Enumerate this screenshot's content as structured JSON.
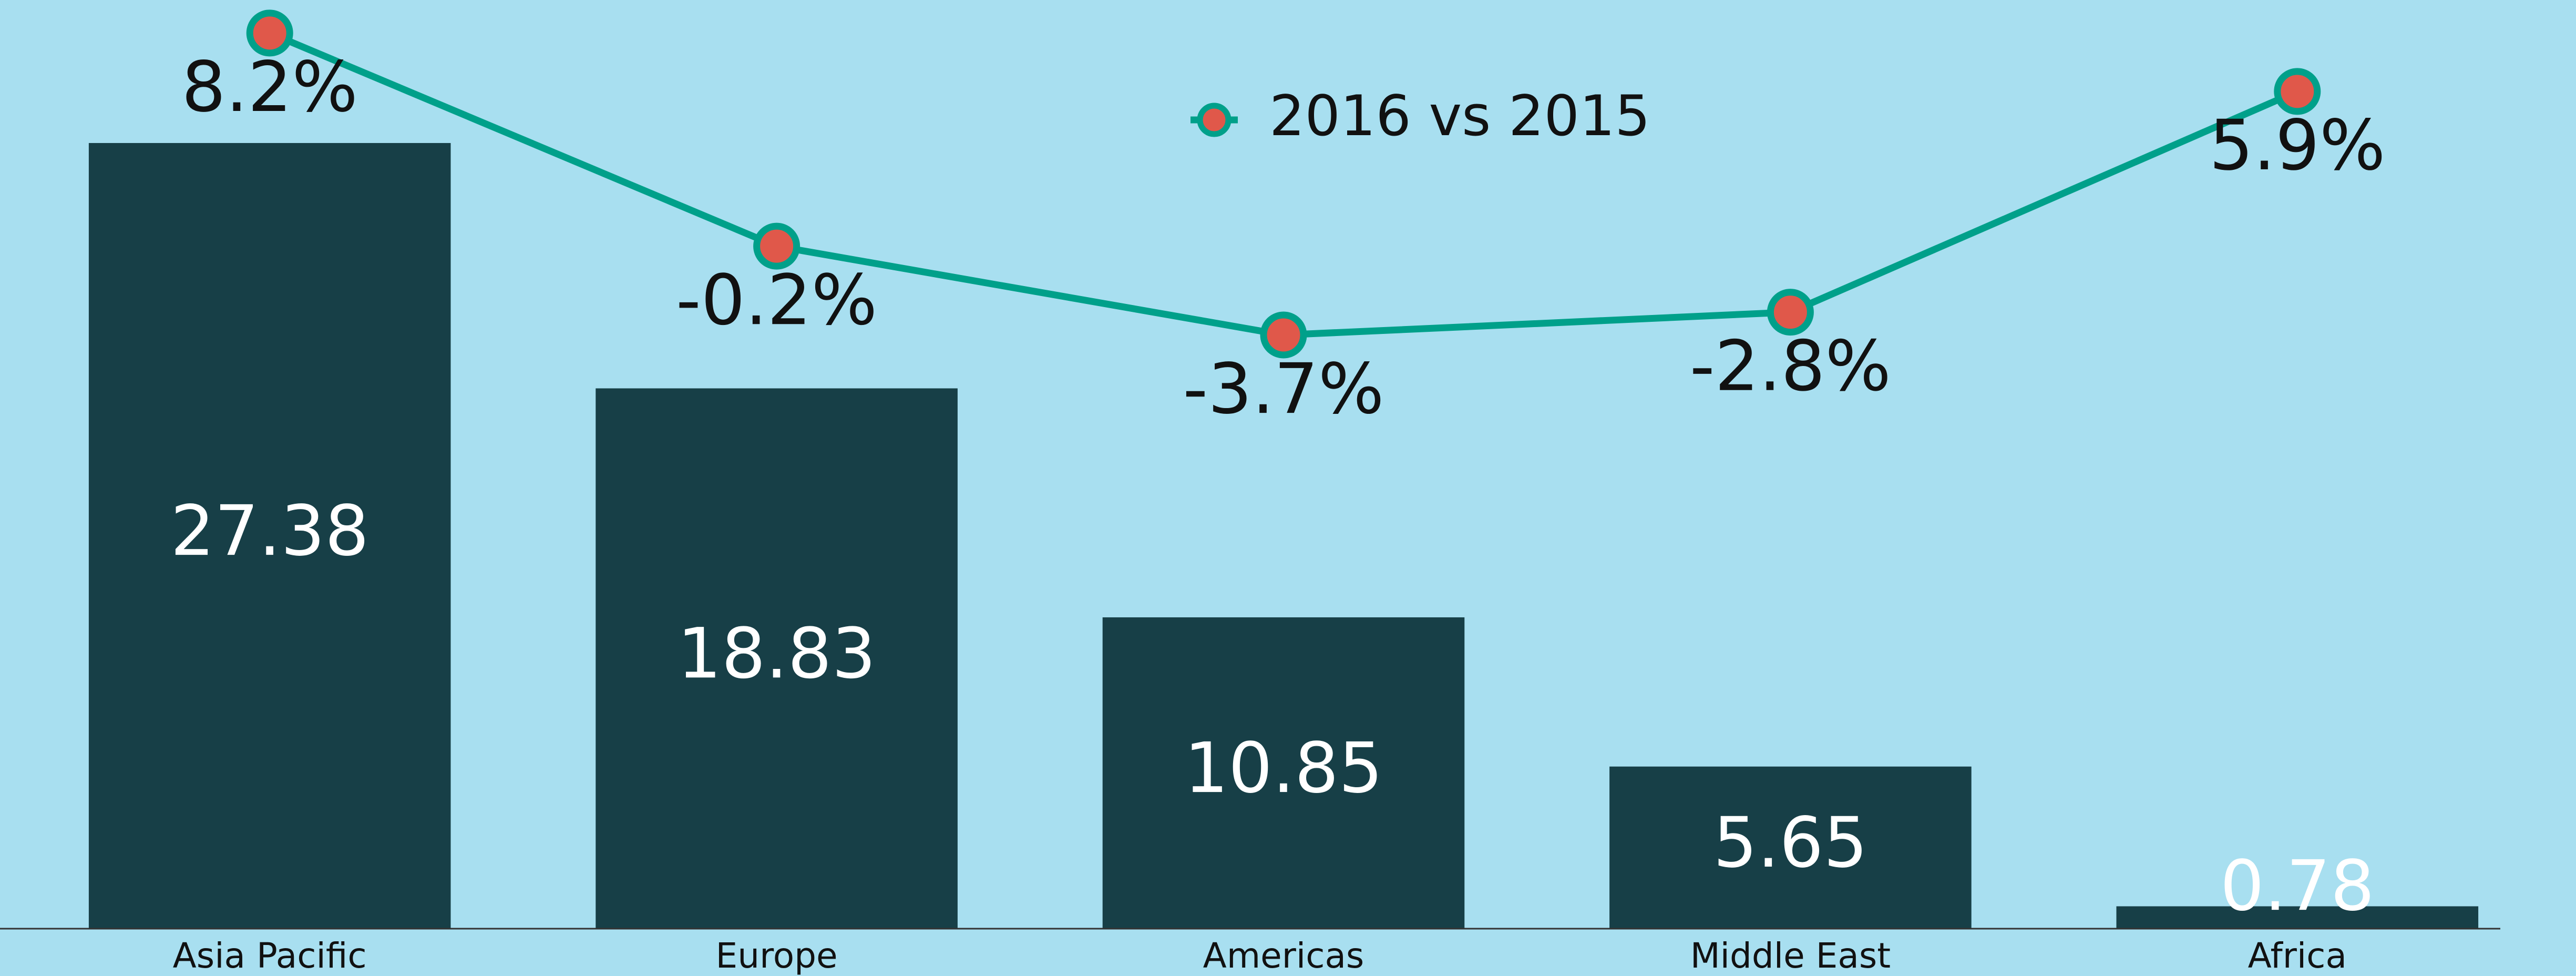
{
  "chart_data": {
    "type": "bar",
    "categories": [
      "Asia Pacific",
      "Europe",
      "Americas",
      "Middle East",
      "Africa"
    ],
    "values": [
      27.38,
      18.83,
      10.85,
      5.65,
      0.78
    ],
    "color": "#173f47",
    "ylim": [
      0,
      30
    ],
    "y2lim": [
      -10,
      10
    ],
    "legend": "top",
    "series": [
      {
        "name": "2016 vs 2015",
        "type": "line",
        "axis": "y2",
        "color": "#00a08a",
        "marker_color": "#e0584a",
        "values": [
          8.2,
          -0.2,
          -3.7,
          -2.8,
          5.9
        ],
        "value_labels": [
          "8.2%",
          "-0.2%",
          "-3.7%",
          "-2.8%",
          "5.9%"
        ]
      }
    ]
  }
}
